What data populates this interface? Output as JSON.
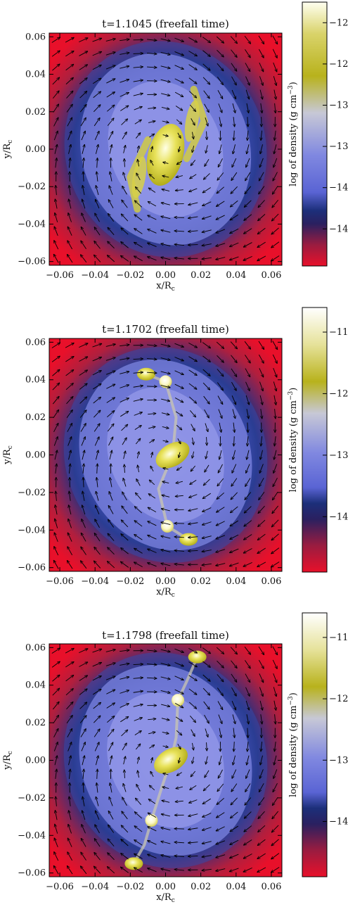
{
  "colors": {
    "low": "#e8102a",
    "mid_dark": "#1c2f7a",
    "mid": "#6c74d8",
    "high": "#c8c21a",
    "top": "#ffffff"
  },
  "chart_data": [
    {
      "type": "heatmap",
      "title": "t=1.1045 (freefall time)",
      "xlabel": "x/R",
      "xlabel_sub": "c",
      "ylabel": "y/R",
      "ylabel_sub": "c",
      "xlim": [
        -0.066,
        0.066
      ],
      "ylim": [
        -0.062,
        0.062
      ],
      "xticks": [
        -0.06,
        -0.04,
        -0.02,
        0.0,
        0.02,
        0.04,
        0.06
      ],
      "yticks": [
        -0.06,
        -0.04,
        -0.02,
        0.0,
        0.02,
        0.04,
        0.06
      ],
      "xtick_labels": [
        "−0.06",
        "−0.04",
        "−0.02",
        "0.00",
        "0.02",
        "0.04",
        "0.06"
      ],
      "ytick_labels": [
        "−0.06",
        "−0.04",
        "−0.02",
        "0.00",
        "0.02",
        "0.04",
        "0.06"
      ],
      "grid": false,
      "field": "velocity vectors",
      "colorbar": {
        "label": "log of density (g cm",
        "label_sup": "−3",
        "label_end": ")",
        "range": [
          -14.95,
          -11.75
        ],
        "ticks": [
          -12.0,
          -12.5,
          -13.0,
          -13.5,
          -14.0,
          -14.5
        ],
        "tick_labels": [
          "−12.0",
          "−12.5",
          "−13.0",
          "−13.5",
          "−14.0",
          "−14.5"
        ]
      },
      "structures": [
        {
          "name": "central bar",
          "x": 0.0,
          "y": -0.003,
          "log_density": -12.3
        },
        {
          "name": "spiral arm",
          "x": 0.015,
          "y": 0.015,
          "log_density": -12.6
        },
        {
          "name": "spiral arm",
          "x": -0.015,
          "y": -0.015,
          "log_density": -12.6
        }
      ]
    },
    {
      "type": "heatmap",
      "title": "t=1.1702 (freefall time)",
      "xlabel": "x/R",
      "xlabel_sub": "c",
      "ylabel": "y/R",
      "ylabel_sub": "c",
      "xlim": [
        -0.066,
        0.066
      ],
      "ylim": [
        -0.062,
        0.062
      ],
      "xticks": [
        -0.06,
        -0.04,
        -0.02,
        0.0,
        0.02,
        0.04,
        0.06
      ],
      "yticks": [
        -0.06,
        -0.04,
        -0.02,
        0.0,
        0.02,
        0.04,
        0.06
      ],
      "xtick_labels": [
        "−0.06",
        "−0.04",
        "−0.02",
        "0.00",
        "0.02",
        "0.04",
        "0.06"
      ],
      "ytick_labels": [
        "−0.06",
        "−0.04",
        "−0.02",
        "0.00",
        "0.02",
        "0.04",
        "0.06"
      ],
      "grid": false,
      "field": "velocity vectors",
      "colorbar": {
        "label": "log of density (g cm",
        "label_sup": "−3",
        "label_end": ")",
        "range": [
          -14.9,
          -10.6
        ],
        "ticks": [
          -11,
          -12,
          -13,
          -14
        ],
        "tick_labels": [
          "−11",
          "−12",
          "−13",
          "−14"
        ]
      },
      "structures": [
        {
          "name": "clump",
          "x": -0.011,
          "y": 0.043,
          "log_density": -12.0
        },
        {
          "name": "clump",
          "x": 0.0,
          "y": 0.039,
          "log_density": -11.0
        },
        {
          "name": "central bar",
          "x": 0.004,
          "y": 0.0,
          "log_density": -11.8
        },
        {
          "name": "clump",
          "x": 0.001,
          "y": -0.038,
          "log_density": -11.0
        },
        {
          "name": "clump",
          "x": 0.013,
          "y": -0.045,
          "log_density": -11.9
        }
      ]
    },
    {
      "type": "heatmap",
      "title": "t=1.1798 (freefall time)",
      "xlabel": "x/R",
      "xlabel_sub": "c",
      "ylabel": "y/R",
      "ylabel_sub": "c",
      "xlim": [
        -0.066,
        0.066
      ],
      "ylim": [
        -0.062,
        0.062
      ],
      "xticks": [
        -0.06,
        -0.04,
        -0.02,
        0.0,
        0.02,
        0.04,
        0.06
      ],
      "yticks": [
        -0.06,
        -0.04,
        -0.02,
        0.0,
        0.02,
        0.04,
        0.06
      ],
      "xtick_labels": [
        "−0.06",
        "−0.04",
        "−0.02",
        "0.00",
        "0.02",
        "0.04",
        "0.06"
      ],
      "ytick_labels": [
        "−0.06",
        "−0.04",
        "−0.02",
        "0.00",
        "0.02",
        "0.04",
        "0.06"
      ],
      "grid": false,
      "field": "velocity vectors",
      "colorbar": {
        "label": "log of density (g cm",
        "label_sup": "−3",
        "label_end": ")",
        "range": [
          -14.9,
          -10.6
        ],
        "ticks": [
          -11,
          -12,
          -13,
          -14
        ],
        "tick_labels": [
          "−11",
          "−12",
          "−13",
          "−14"
        ]
      },
      "structures": [
        {
          "name": "clump",
          "x": 0.018,
          "y": 0.055,
          "log_density": -11.8
        },
        {
          "name": "clump",
          "x": 0.007,
          "y": 0.032,
          "log_density": -10.8
        },
        {
          "name": "central bar",
          "x": 0.003,
          "y": 0.0,
          "log_density": -11.9
        },
        {
          "name": "clump",
          "x": -0.008,
          "y": -0.032,
          "log_density": -10.8
        },
        {
          "name": "clump",
          "x": -0.018,
          "y": -0.055,
          "log_density": -11.8
        }
      ]
    }
  ]
}
